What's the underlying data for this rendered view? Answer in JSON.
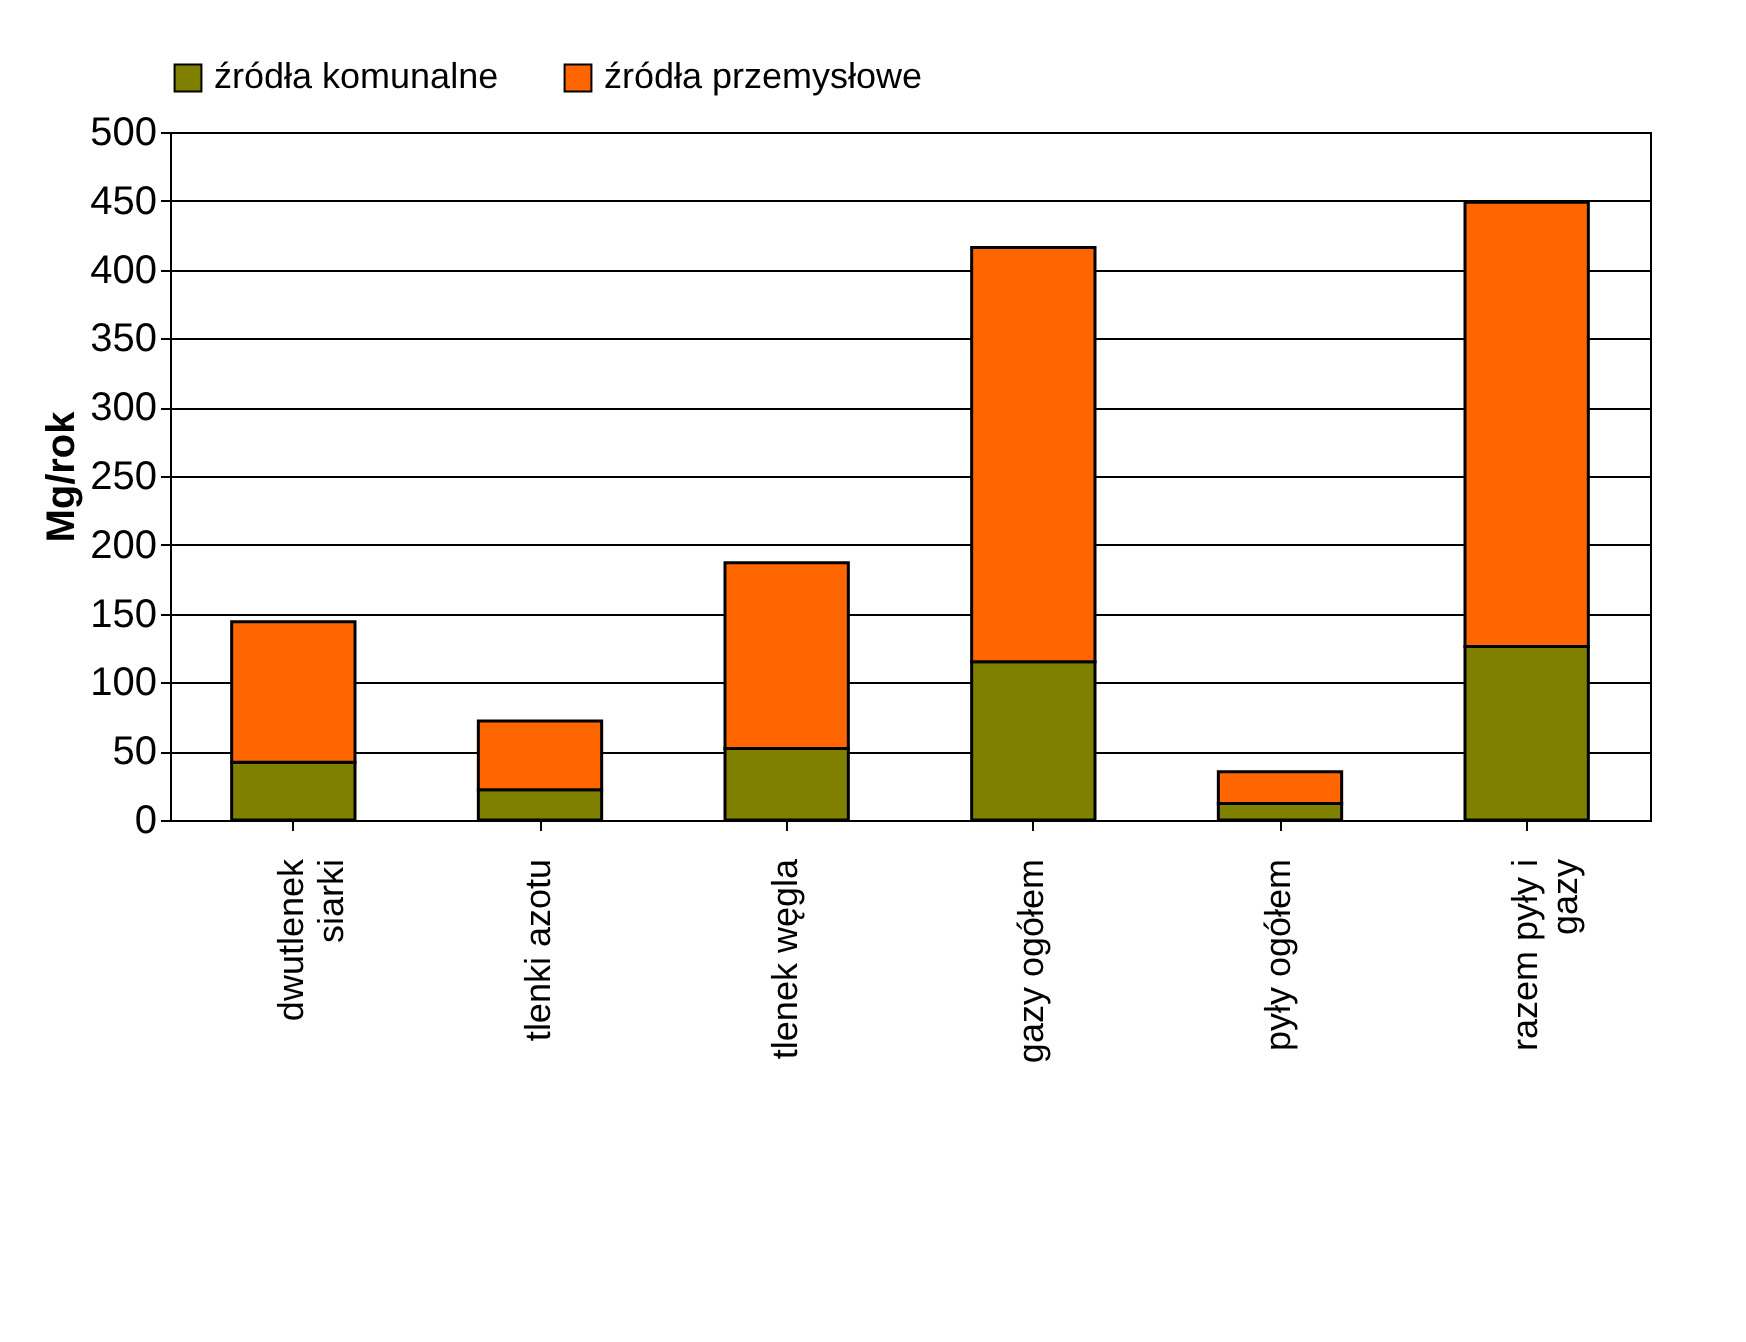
{
  "chart_data": {
    "type": "bar",
    "stacked": true,
    "ylabel": "Mg/rok",
    "categories": [
      "dwutlenek siarki",
      "tlenki azotu",
      "tlenek węgla",
      "gazy ogółem",
      "pyły ogółem",
      "razem pyły i gazy"
    ],
    "series": [
      {
        "name": "źródła komunalne",
        "color": "#808000",
        "values": [
          42,
          22,
          52,
          115,
          12,
          126
        ]
      },
      {
        "name": "źródła przemysłowe",
        "color": "#ff6600",
        "values": [
          102,
          50,
          135,
          301,
          23,
          323
        ]
      }
    ],
    "ylim": [
      0,
      500
    ],
    "yticks": [
      0,
      50,
      100,
      150,
      200,
      250,
      300,
      350,
      400,
      450,
      500
    ],
    "grid": "y",
    "legend": "top"
  }
}
